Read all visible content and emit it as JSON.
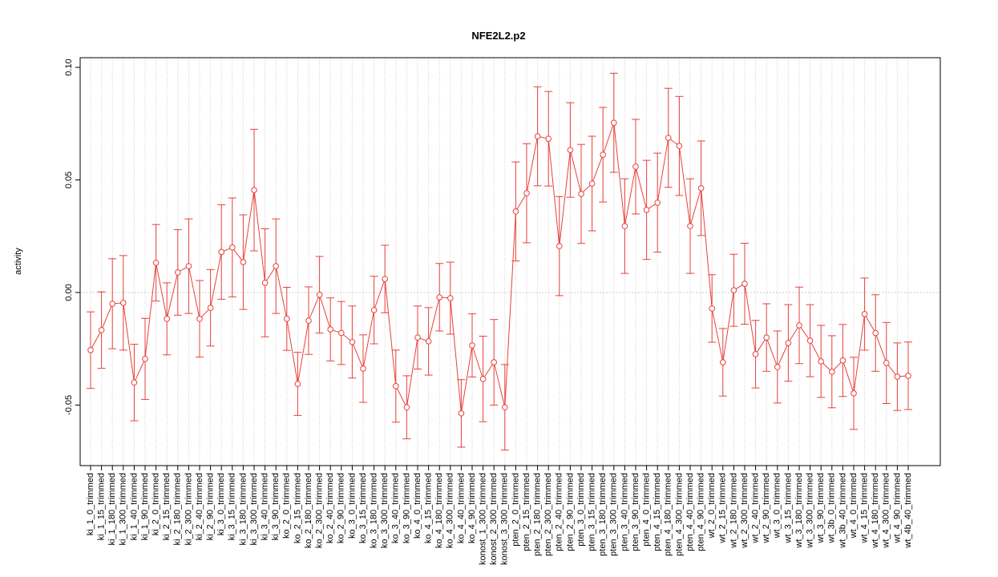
{
  "chart_data": {
    "type": "errorbar-line",
    "title": "NFE2L2.p2",
    "y_label": "activity",
    "categories": [
      "ki_1_0_trimmed",
      "ki_1_15_trimmed",
      "ki_1_180_trimmed",
      "ki_1_300_trimmed",
      "ki_1_40_trimmed",
      "ki_1_90_trimmed",
      "ki_2_0_trimmed",
      "ki_2_15_trimmed",
      "ki_2_180_trimmed",
      "ki_2_300_trimmed",
      "ki_2_40_trimmed",
      "ki_2_90_trimmed",
      "ki_3_0_trimmed",
      "ki_3_15_trimmed",
      "ki_3_180_trimmed",
      "ki_3_300_trimmed",
      "ki_3_40_trimmed",
      "ki_3_90_trimmed",
      "ko_2_0_trimmed",
      "ko_2_15_trimmed",
      "ko_2_180_trimmed",
      "ko_2_300_trimmed",
      "ko_2_40_trimmed",
      "ko_2_90_trimmed",
      "ko_3_0_trimmed",
      "ko_3_15_trimmed",
      "ko_3_180_trimmed",
      "ko_3_300_trimmed",
      "ko_3_40_trimmed",
      "ko_3_90_trimmed",
      "ko_4_0_trimmed",
      "ko_4_15_trimmed",
      "ko_4_180_trimmed",
      "ko_4_300_trimmed",
      "ko_4_40_trimmed",
      "ko_4_90_trimmed",
      "konost_1_300_trimmed",
      "konost_2_300_trimmed",
      "konost_3_300_trimmed",
      "pten_2_0_trimmed",
      "pten_2_15_trimmed",
      "pten_2_180_trimmed",
      "pten_2_300_trimmed",
      "pten_2_40_trimmed",
      "pten_2_90_trimmed",
      "pten_3_0_trimmed",
      "pten_3_15_trimmed",
      "pten_3_180_trimmed",
      "pten_3_300_trimmed",
      "pten_3_40_trimmed",
      "pten_3_90_trimmed",
      "pten_4_0_trimmed",
      "pten_4_15_trimmed",
      "pten_4_180_trimmed",
      "pten_4_300_trimmed",
      "pten_4_40_trimmed",
      "pten_4_90_trimmed",
      "wt_2_0_trimmed",
      "wt_2_15_trimmed",
      "wt_2_180_trimmed",
      "wt_2_300_trimmed",
      "wt_2_40_trimmed",
      "wt_2_90_trimmed",
      "wt_3_0_trimmed",
      "wt_3_15_trimmed",
      "wt_3_180_trimmed",
      "wt_3_300_trimmed",
      "wt_3_90_trimmed",
      "wt_3b_0_trimmed",
      "wt_3b_40_trimmed",
      "wt_4_0_trimmed",
      "wt_4_15_trimmed",
      "wt_4_180_trimmed",
      "wt_4_300_trimmed",
      "wt_4_90_trimmed",
      "wt_4b_40_trimmed"
    ],
    "series": [
      {
        "color": "#e8403a",
        "values": [
          -0.0256,
          -0.0167,
          -0.005,
          -0.0046,
          -0.04,
          -0.0295,
          0.0132,
          -0.0117,
          0.0089,
          0.0117,
          -0.0117,
          -0.0068,
          0.018,
          0.02,
          0.0135,
          0.0455,
          0.0043,
          0.0117,
          -0.0117,
          -0.0406,
          -0.0125,
          -0.001,
          -0.0164,
          -0.018,
          -0.022,
          -0.0338,
          -0.0078,
          0.006,
          -0.0416,
          -0.051,
          -0.02,
          -0.0217,
          -0.0021,
          -0.0025,
          -0.0537,
          -0.0235,
          -0.0384,
          -0.031,
          -0.051,
          0.036,
          0.0441,
          0.0694,
          0.0683,
          0.0206,
          0.0633,
          0.0438,
          0.0484,
          0.0612,
          0.0754,
          0.0295,
          0.0559,
          0.0367,
          0.0399,
          0.0687,
          0.0651,
          0.0295,
          0.0463,
          -0.0071,
          -0.031,
          0.001,
          0.0039,
          -0.0274,
          -0.02,
          -0.0331,
          -0.0224,
          -0.0146,
          -0.0214,
          -0.0306,
          -0.0352,
          -0.0302,
          -0.0448,
          -0.0096,
          -0.018,
          -0.0313,
          -0.0374,
          -0.037
        ],
        "errors": [
          0.017,
          0.017,
          0.02,
          0.021,
          0.017,
          0.018,
          0.017,
          0.016,
          0.019,
          0.021,
          0.017,
          0.017,
          0.021,
          0.022,
          0.021,
          0.027,
          0.024,
          0.021,
          0.014,
          0.014,
          0.015,
          0.017,
          0.014,
          0.014,
          0.016,
          0.015,
          0.015,
          0.015,
          0.016,
          0.014,
          0.014,
          0.015,
          0.015,
          0.016,
          0.015,
          0.014,
          0.019,
          0.019,
          0.019,
          0.022,
          0.022,
          0.022,
          0.021,
          0.022,
          0.021,
          0.022,
          0.021,
          0.021,
          0.022,
          0.021,
          0.021,
          0.022,
          0.022,
          0.022,
          0.022,
          0.021,
          0.021,
          0.015,
          0.015,
          0.016,
          0.018,
          0.015,
          0.015,
          0.016,
          0.017,
          0.017,
          0.016,
          0.016,
          0.016,
          0.016,
          0.016,
          0.016,
          0.017,
          0.018,
          0.015,
          0.015
        ]
      }
    ],
    "ylim": [
      -0.0769,
      0.1043
    ],
    "yticks": [
      {
        "value": -0.05,
        "label": "-0.05"
      },
      {
        "value": 0,
        "label": "0.00"
      },
      {
        "value": 0.05,
        "label": "0.05"
      },
      {
        "value": 0.1,
        "label": "0.10"
      }
    ],
    "grid": true,
    "reference_line": 0
  }
}
